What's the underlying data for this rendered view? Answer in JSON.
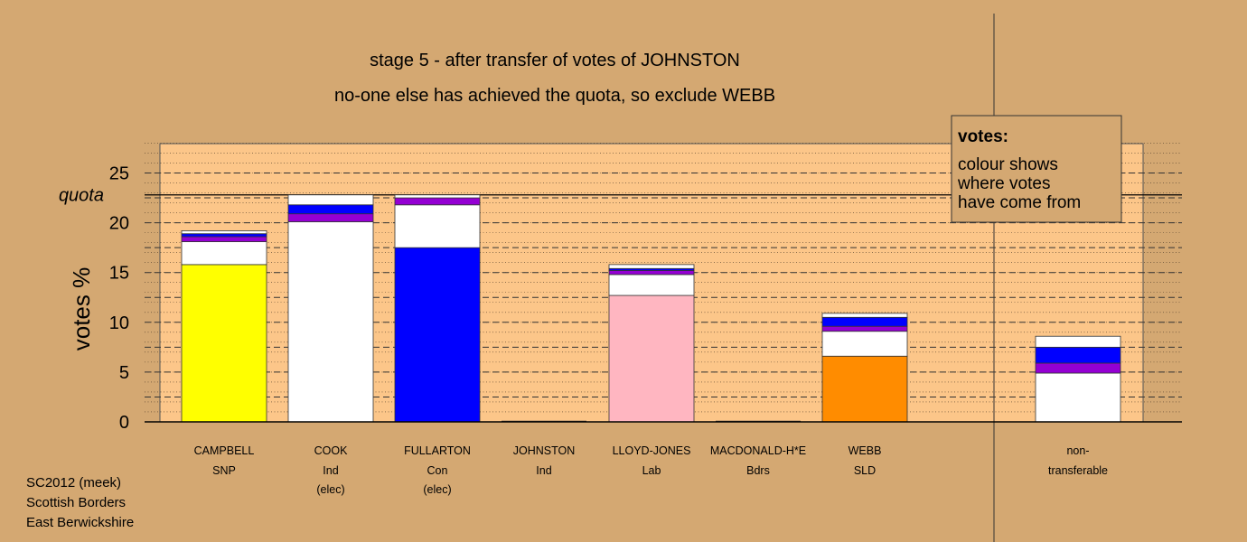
{
  "colors": {
    "background": "#d4a872",
    "plot_fill": "#fcc689",
    "SNP": "#ffff00",
    "Ind": "#ffffff",
    "Con": "#0000ff",
    "Lab": "#ffb6c1",
    "Bdrs": "#ffffff",
    "SLD": "#ff8c00",
    "purple": "#9400d3"
  },
  "chart_data": {
    "type": "bar",
    "stacked": true,
    "title": "stage 5 - after transfer of votes of JOHNSTON",
    "subtitle": "no-one else has achieved the quota, so exclude WEBB",
    "ylabel": "votes %",
    "ylim": [
      0,
      28
    ],
    "yticks": [
      0,
      5,
      10,
      15,
      20,
      25
    ],
    "quota": 22.8,
    "quota_label": "quota",
    "legend": {
      "heading": "votes:",
      "lines": [
        "colour shows",
        "where votes",
        "have come from"
      ]
    },
    "candidates": [
      {
        "name": "CAMPBELL",
        "party": "SNP",
        "note": "",
        "segments": [
          {
            "value": 15.8,
            "color": "#ffff00"
          },
          {
            "value": 2.3,
            "color": "#ffffff"
          },
          {
            "value": 0.5,
            "color": "#9400d3"
          },
          {
            "value": 0.3,
            "color": "#0000ff"
          },
          {
            "value": 0.3,
            "color": "#ffffff"
          }
        ]
      },
      {
        "name": "COOK",
        "party": "Ind",
        "note": "(elec)",
        "segments": [
          {
            "value": 20.1,
            "color": "#ffffff"
          },
          {
            "value": 0.8,
            "color": "#9400d3"
          },
          {
            "value": 0.9,
            "color": "#0000ff"
          },
          {
            "value": 1.0,
            "color": "#ffffff"
          }
        ]
      },
      {
        "name": "FULLARTON",
        "party": "Con",
        "note": "(elec)",
        "segments": [
          {
            "value": 17.5,
            "color": "#0000ff"
          },
          {
            "value": 4.3,
            "color": "#ffffff"
          },
          {
            "value": 0.7,
            "color": "#9400d3"
          },
          {
            "value": 0.3,
            "color": "#ffffff"
          }
        ]
      },
      {
        "name": "JOHNSTON",
        "party": "Ind",
        "note": "",
        "segments": []
      },
      {
        "name": "LLOYD-JONES",
        "party": "Lab",
        "note": "",
        "segments": [
          {
            "value": 12.7,
            "color": "#ffb6c1"
          },
          {
            "value": 2.1,
            "color": "#ffffff"
          },
          {
            "value": 0.4,
            "color": "#9400d3"
          },
          {
            "value": 0.2,
            "color": "#0000ff"
          },
          {
            "value": 0.4,
            "color": "#ffffff"
          }
        ]
      },
      {
        "name": "MACDONALD-H*E",
        "party": "Bdrs",
        "note": "",
        "segments": []
      },
      {
        "name": "WEBB",
        "party": "SLD",
        "note": "",
        "segments": [
          {
            "value": 6.6,
            "color": "#ff8c00"
          },
          {
            "value": 2.5,
            "color": "#ffffff"
          },
          {
            "value": 0.5,
            "color": "#9400d3"
          },
          {
            "value": 0.9,
            "color": "#0000ff"
          },
          {
            "value": 0.4,
            "color": "#ffffff"
          }
        ]
      },
      {
        "name": "non-",
        "party": "transferable",
        "note": "",
        "segments": [
          {
            "value": 4.9,
            "color": "#ffffff"
          },
          {
            "value": 1.0,
            "color": "#9400d3"
          },
          {
            "value": 1.6,
            "color": "#0000ff"
          },
          {
            "value": 1.1,
            "color": "#ffffff"
          }
        ]
      }
    ]
  },
  "footer": {
    "line1": "SC2012 (meek)",
    "line2": "Scottish Borders",
    "line3": "East Berwickshire"
  }
}
